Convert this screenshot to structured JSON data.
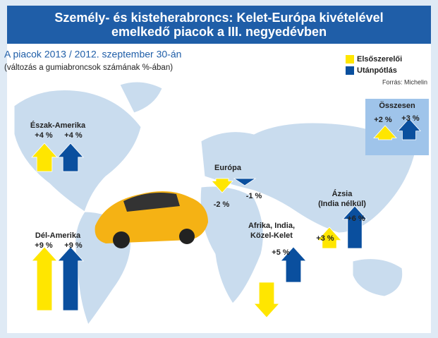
{
  "chart_data": {
    "type": "arrow",
    "title": "Személy- és kisteherabroncs: Kelet-Európa kivételével emelkedő piacok a III. negyedévben",
    "subtitle": "A piacok 2013 / 2012. szeptember 30-án",
    "note": "(változás a gumiabroncsok számának %-ában)",
    "source": "Forrás: Michelin",
    "categories": [
      [
        "Észak-Amerika"
      ],
      [
        "Dél-Amerika"
      ],
      [
        "Európa"
      ],
      [
        "Afrika, India,",
        "Közel-Kelet"
      ],
      [
        "Ázsia",
        "(India nélkül)"
      ],
      [
        "Összesen"
      ]
    ],
    "series": [
      {
        "name": "Elsőszerelői",
        "color": "#ffe600",
        "values": [
          4,
          9,
          -2,
          -5,
          3,
          2
        ],
        "value_labels": [
          "+4 %",
          "+9 %",
          "-2 %",
          null,
          "+3 %",
          "+2 %"
        ]
      },
      {
        "name": "Utánpótlás",
        "color": "#0a4f9e",
        "values": [
          4,
          9,
          -1,
          5,
          6,
          3
        ],
        "value_labels": [
          "+4 %",
          "+9 %",
          "-1 %",
          "+5 %",
          "+6 %",
          "+3 %"
        ]
      }
    ]
  }
}
